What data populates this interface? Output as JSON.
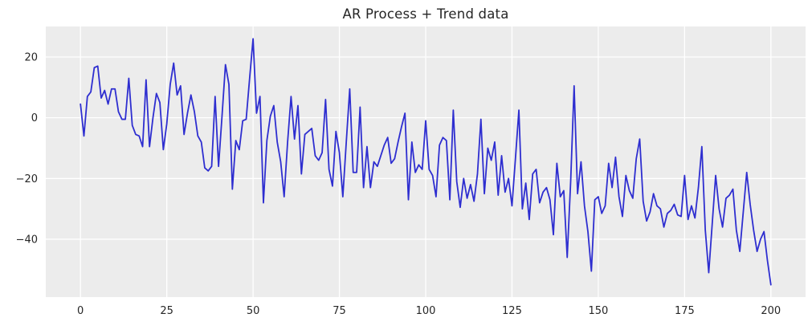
{
  "title": "AR Process + Trend data",
  "chart_data": {
    "type": "line",
    "title": "AR Process + Trend data",
    "xlabel": "",
    "ylabel": "",
    "legend_position": "none",
    "grid": true,
    "x_start": 0,
    "x_step": 1,
    "x_ticks": [
      0,
      25,
      50,
      75,
      100,
      125,
      150,
      175,
      200
    ],
    "y_ticks": [
      20,
      0,
      -20,
      -40
    ],
    "xlim": [
      -10.05,
      210.05
    ],
    "ylim": [
      -59.05,
      30.05
    ],
    "line_color": "#2e2ed0",
    "plot_bg": "#ececec",
    "grid_color": "#ffffff",
    "text_color": "#262626",
    "values": [
      4.5,
      -6,
      7,
      8.5,
      16.5,
      17,
      6.5,
      9,
      4.5,
      9.5,
      9.5,
      2,
      -0.5,
      -0.5,
      13,
      -2.5,
      -5.5,
      -6,
      -9.5,
      12.5,
      -9.5,
      0,
      8,
      5,
      -10.5,
      -2,
      11,
      18,
      7.5,
      10.5,
      -5.5,
      1.5,
      7.5,
      2,
      -6,
      -8,
      -16.5,
      -17.5,
      -16,
      7,
      -16,
      0.5,
      17.5,
      11,
      -23.5,
      -7.5,
      -10.5,
      -1,
      -0.5,
      13,
      26,
      1.5,
      7,
      -28,
      -7.5,
      0.5,
      4,
      -8,
      -14.5,
      -26,
      -8,
      7,
      -7,
      4,
      -18.5,
      -5.5,
      -4.5,
      -3.5,
      -12.5,
      -14,
      -11.5,
      6,
      -17,
      -22.5,
      -4.5,
      -11.5,
      -26,
      -8,
      9.5,
      -18,
      -18,
      3.5,
      -23,
      -9.5,
      -23,
      -14.5,
      -16,
      -12.5,
      -9,
      -6.5,
      -15,
      -13.5,
      -8,
      -3,
      1.5,
      -27,
      -8,
      -18,
      -15.5,
      -17,
      -1,
      -17,
      -19,
      -26,
      -9,
      -6.5,
      -7.5,
      -27,
      2.5,
      -21,
      -29.5,
      -20,
      -26.5,
      -22,
      -27.5,
      -18.5,
      -0.5,
      -25,
      -10,
      -14,
      -8,
      -25.5,
      -12.5,
      -24.5,
      -20,
      -29,
      -13.5,
      2.5,
      -30,
      -21.5,
      -33.5,
      -18.5,
      -17,
      -28,
      -24.5,
      -23,
      -27,
      -38.5,
      -15,
      -26,
      -24,
      -46,
      -21,
      10.5,
      -25,
      -14.5,
      -29,
      -37.5,
      -50.5,
      -27,
      -26,
      -31.5,
      -29,
      -15,
      -23,
      -13,
      -26,
      -32.5,
      -19,
      -24,
      -26.5,
      -13.5,
      -7,
      -27.5,
      -34,
      -31,
      -25,
      -29,
      -30,
      -36,
      -31.5,
      -30.5,
      -28.5,
      -32,
      -32.5,
      -19,
      -33.5,
      -29,
      -33,
      -23,
      -9.5,
      -37,
      -51,
      -35,
      -19,
      -30,
      -36,
      -26.5,
      -25.5,
      -23.5,
      -37,
      -44,
      -31,
      -18,
      -28.5,
      -37,
      -44,
      -40,
      -37.5,
      -47,
      -55
    ]
  }
}
